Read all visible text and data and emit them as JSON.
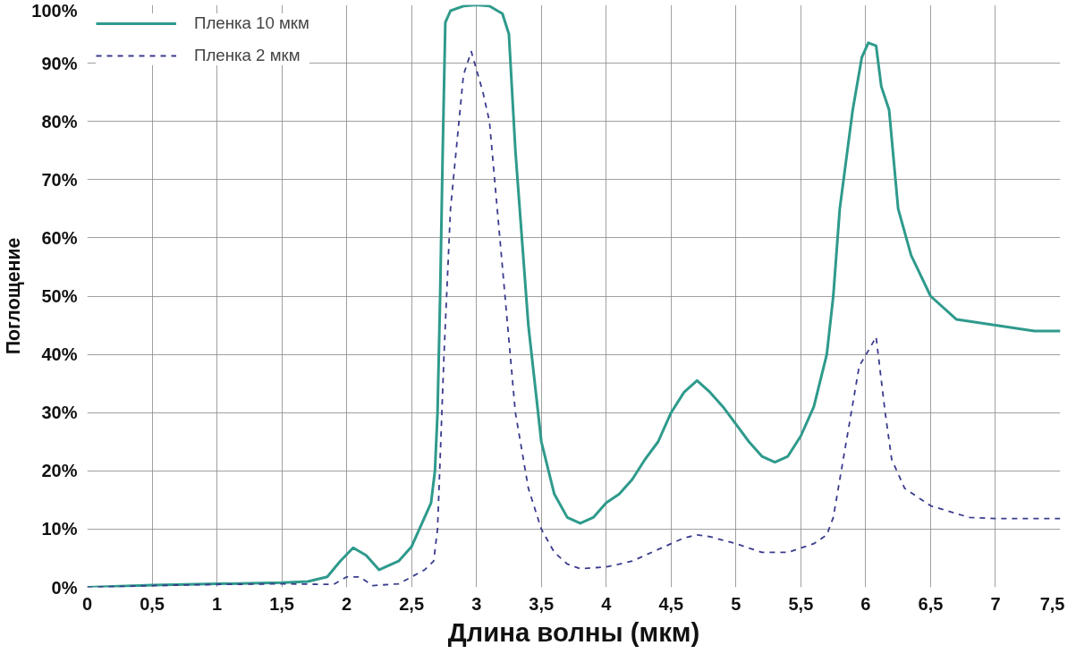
{
  "chart_data": {
    "type": "line",
    "xlabel": "Длина волны (мкм)",
    "ylabel": "Поглощение",
    "xlim": [
      0,
      7.5
    ],
    "ylim": [
      0,
      100
    ],
    "xticks": [
      0,
      {
        "value": 0.5,
        "label": "0,5"
      },
      1,
      {
        "value": 1.5,
        "label": "1,5"
      },
      2,
      {
        "value": 2.5,
        "label": "2,5"
      },
      3,
      {
        "value": 3.5,
        "label": "3,5"
      },
      4,
      {
        "value": 4.5,
        "label": "4,5"
      },
      5,
      {
        "value": 5.5,
        "label": "5,5"
      },
      6,
      {
        "value": 6.5,
        "label": "6,5"
      },
      7,
      {
        "value": 7.5,
        "label": "7,5"
      }
    ],
    "yticks": [
      {
        "value": 0,
        "label": "0%"
      },
      {
        "value": 10,
        "label": "10%"
      },
      {
        "value": 20,
        "label": "20%"
      },
      {
        "value": 30,
        "label": "30%"
      },
      {
        "value": 40,
        "label": "40%"
      },
      {
        "value": 50,
        "label": "50%"
      },
      {
        "value": 60,
        "label": "60%"
      },
      {
        "value": 70,
        "label": "70%"
      },
      {
        "value": 80,
        "label": "80%"
      },
      {
        "value": 90,
        "label": "90%"
      },
      {
        "value": 100,
        "label": "100%"
      }
    ],
    "grid": true,
    "legend": "top left",
    "marker": "none",
    "series": [
      {
        "name": "Пленка 10 мкм",
        "color": "#2e9a8c",
        "line_style": "solid",
        "x": [
          0,
          0.5,
          1,
          1.5,
          1.7,
          1.85,
          1.95,
          2.05,
          2.15,
          2.25,
          2.4,
          2.5,
          2.6,
          2.65,
          2.68,
          2.7,
          2.72,
          2.74,
          2.76,
          2.8,
          2.9,
          3.0,
          3.1,
          3.2,
          3.25,
          3.3,
          3.4,
          3.5,
          3.6,
          3.7,
          3.8,
          3.9,
          4.0,
          4.1,
          4.2,
          4.3,
          4.4,
          4.5,
          4.6,
          4.7,
          4.8,
          4.9,
          5.0,
          5.1,
          5.2,
          5.3,
          5.4,
          5.5,
          5.6,
          5.7,
          5.75,
          5.8,
          5.9,
          5.97,
          6.02,
          6.08,
          6.12,
          6.18,
          6.25,
          6.35,
          6.5,
          6.7,
          7.0,
          7.3,
          7.5
        ],
        "values": [
          0,
          0.4,
          0.6,
          0.8,
          1.0,
          1.8,
          4.5,
          6.8,
          5.5,
          3,
          4.5,
          7,
          12,
          14.5,
          20,
          30,
          50,
          75,
          97,
          99,
          99.8,
          100,
          99.8,
          98.5,
          95,
          75,
          45,
          25,
          16,
          12,
          11,
          12,
          14.5,
          16,
          18.5,
          22,
          25,
          30,
          33.5,
          35.5,
          33.5,
          31,
          28,
          25,
          22.5,
          21.5,
          22.5,
          26,
          31,
          40,
          50,
          65,
          82,
          91,
          93.5,
          93,
          86,
          82,
          65,
          57,
          50,
          46,
          45,
          44,
          44
        ]
      },
      {
        "name": "Пленка 2 мкм",
        "color": "#3b3b8f",
        "line_style": "dashed",
        "x": [
          0,
          0.5,
          1.0,
          1.5,
          1.9,
          2.0,
          2.1,
          2.2,
          2.4,
          2.6,
          2.67,
          2.7,
          2.75,
          2.8,
          2.9,
          2.96,
          3.05,
          3.1,
          3.2,
          3.3,
          3.4,
          3.5,
          3.6,
          3.7,
          3.8,
          4.0,
          4.2,
          4.4,
          4.6,
          4.7,
          4.8,
          5.0,
          5.2,
          5.4,
          5.6,
          5.7,
          5.75,
          5.85,
          5.95,
          6.03,
          6.08,
          6.15,
          6.2,
          6.3,
          6.5,
          6.8,
          7.0,
          7.5
        ],
        "values": [
          0,
          0.3,
          0.5,
          0.6,
          0.5,
          1.8,
          1.8,
          0.3,
          0.6,
          3,
          4.5,
          10,
          40,
          65,
          88,
          92,
          85,
          80,
          55,
          30,
          17,
          10,
          6,
          4,
          3.2,
          3.5,
          4.5,
          6.5,
          8.5,
          9,
          8.7,
          7.5,
          6,
          6,
          7.5,
          9,
          12,
          25,
          38,
          41,
          43,
          30,
          22,
          17,
          14,
          12,
          11.8,
          11.8
        ]
      }
    ]
  }
}
